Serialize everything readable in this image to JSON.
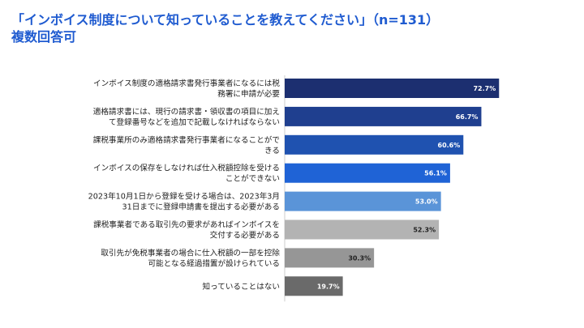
{
  "title": {
    "line1": "「インボイス制度について知っていることを教えてください」（n=131）",
    "line2": "複数回答可"
  },
  "chart_data": {
    "type": "bar",
    "orientation": "horizontal",
    "title": "「インボイス制度について知っていることを教えてください」（n=131）",
    "subtitle": "複数回答可",
    "xlim": [
      0,
      100
    ],
    "grid": false,
    "categories": [
      [
        "インボイス制度の適格請求書発行事業者になるには税",
        "務署に申請が必要"
      ],
      [
        "適格請求書には、現行の請求書・領収書の項目に加え",
        "て登録番号などを追加で記載しなければならない"
      ],
      [
        "課税事業所のみ適格請求書発行事業者になることがで",
        "きる"
      ],
      [
        "インボイスの保存をしなければ仕入税額控除を受ける",
        "ことができない"
      ],
      [
        "2023年10月1日から登録を受ける場合は、2023年3月",
        "31日までに登録申請書を提出する必要がある"
      ],
      [
        "課税事業者である取引先の要求があればインボイスを",
        "交付する必要がある"
      ],
      [
        "取引先が免税事業者の場合に仕入税額の一部を控除",
        "可能となる経過措置が設けられている"
      ],
      [
        "知っていることはない"
      ]
    ],
    "values": [
      72.7,
      66.7,
      60.6,
      56.1,
      53.0,
      52.3,
      30.3,
      19.7
    ],
    "value_labels": [
      "72.7%",
      "66.7%",
      "60.6%",
      "56.1%",
      "53.0%",
      "52.3%",
      "30.3%",
      "19.7%"
    ],
    "bar_colors": [
      "#1c2f70",
      "#1f3f8f",
      "#1f52b0",
      "#1f63d6",
      "#5a94d8",
      "#b3b3b3",
      "#969696",
      "#6a6a6a"
    ],
    "value_label_colors": [
      "#ffffff",
      "#ffffff",
      "#ffffff",
      "#ffffff",
      "#ffffff",
      "#222222",
      "#222222",
      "#ffffff"
    ]
  }
}
